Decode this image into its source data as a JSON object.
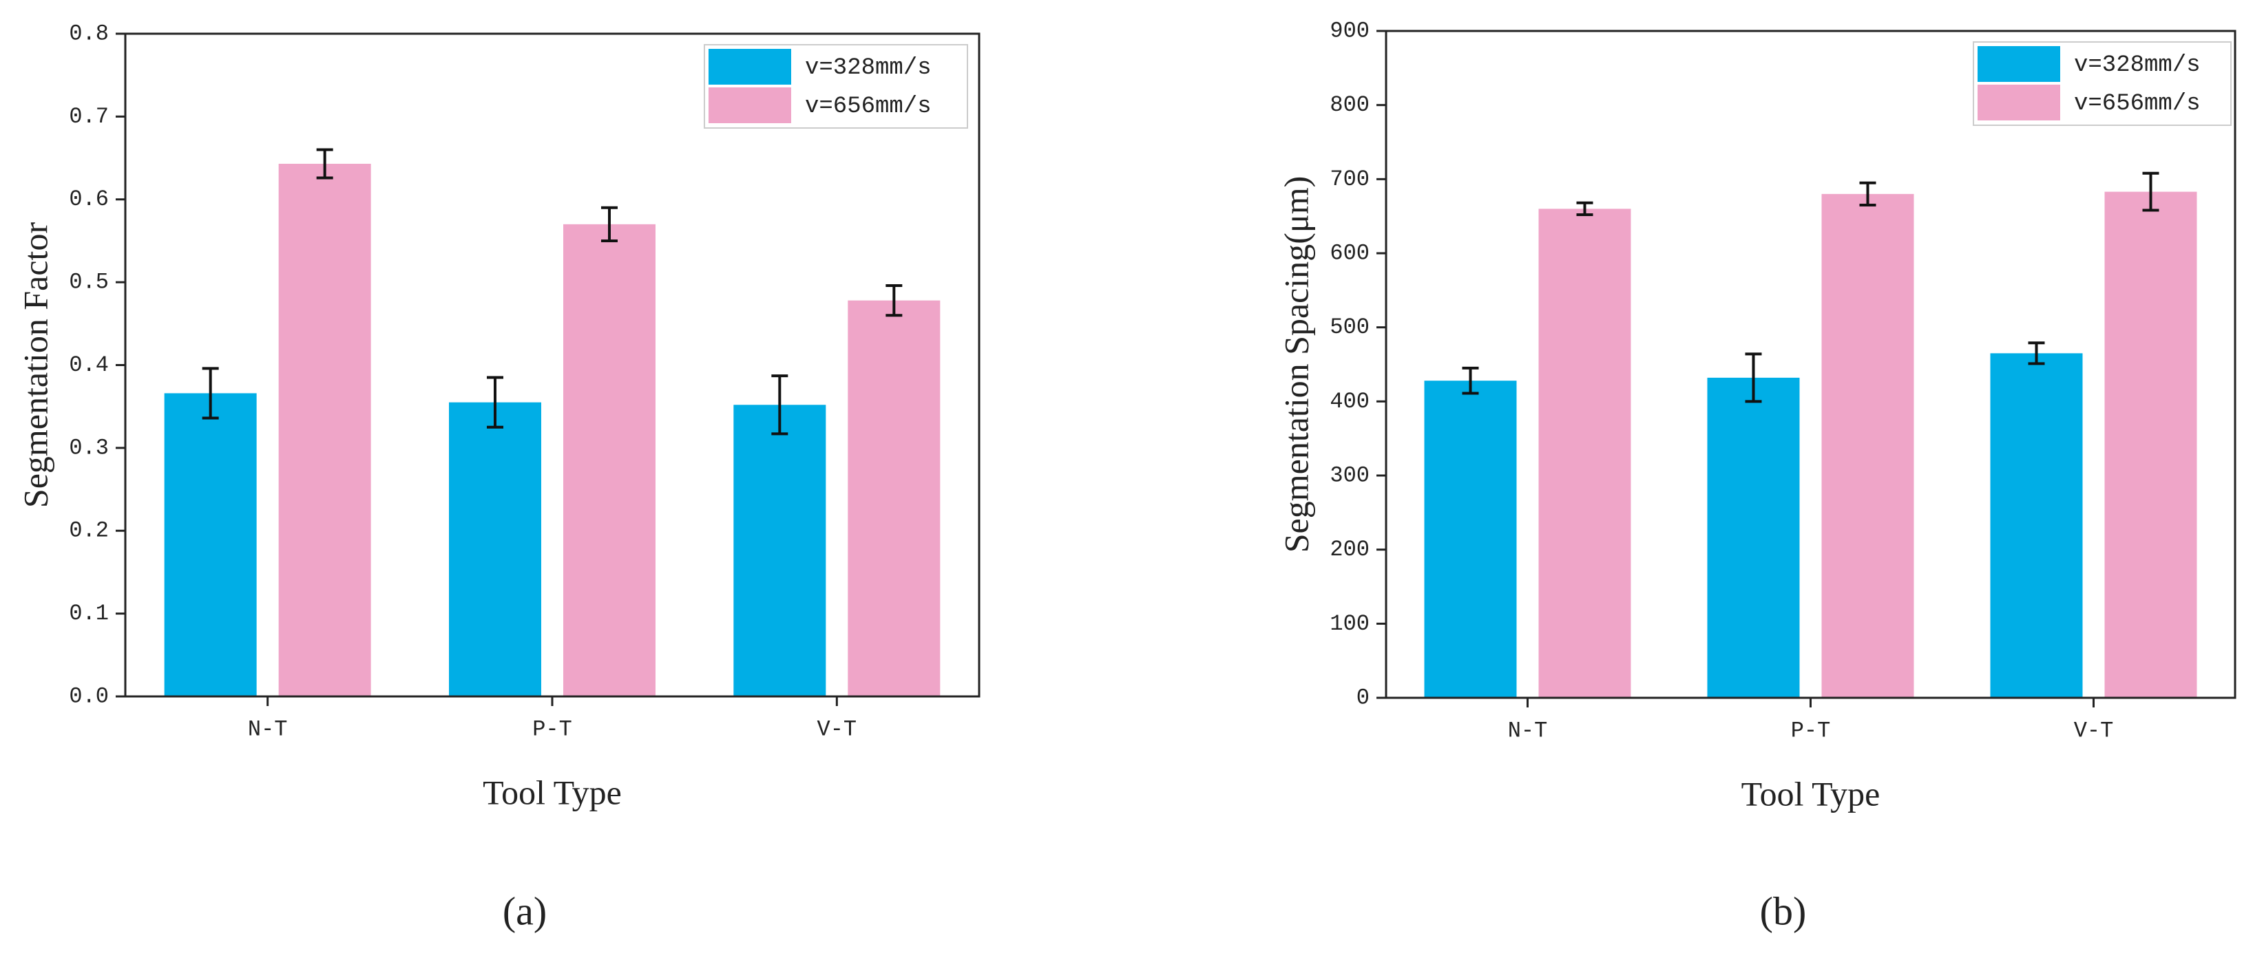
{
  "chart_data": [
    {
      "type": "bar",
      "panel_label": "(a)",
      "x_label": "Tool Type",
      "y_label": "Segmentation Factor",
      "categories": [
        "N-T",
        "P-T",
        "V-T"
      ],
      "series": [
        {
          "name": "v=328mm/s",
          "color": "#00aee6",
          "values": [
            0.366,
            0.355,
            0.352
          ],
          "errors": [
            0.03,
            0.03,
            0.035
          ]
        },
        {
          "name": "v=656mm/s",
          "color": "#efa5c8",
          "values": [
            0.643,
            0.57,
            0.478
          ],
          "errors": [
            0.017,
            0.02,
            0.018
          ]
        }
      ],
      "ylim": [
        0,
        0.8
      ],
      "yticks": [
        {
          "value": 0,
          "label": "0.0"
        },
        0.1,
        0.2,
        0.3,
        0.4,
        0.5,
        0.6,
        0.7,
        0.8
      ],
      "legend": "upper right"
    },
    {
      "type": "bar",
      "panel_label": "(b)",
      "x_label": "Tool Type",
      "y_label": "Segmentation Spacing(μm)",
      "categories": [
        "N-T",
        "P-T",
        "V-T"
      ],
      "series": [
        {
          "name": "v=328mm/s",
          "color": "#00aee6",
          "values": [
            428,
            432,
            465
          ],
          "errors": [
            17,
            32,
            14
          ]
        },
        {
          "name": "v=656mm/s",
          "color": "#efa5c8",
          "values": [
            660,
            680,
            683
          ],
          "errors": [
            8,
            15,
            25
          ]
        }
      ],
      "ylim": [
        0,
        900
      ],
      "yticks": [
        0,
        100,
        200,
        300,
        400,
        500,
        600,
        700,
        800,
        900
      ],
      "legend": "upper right"
    }
  ]
}
